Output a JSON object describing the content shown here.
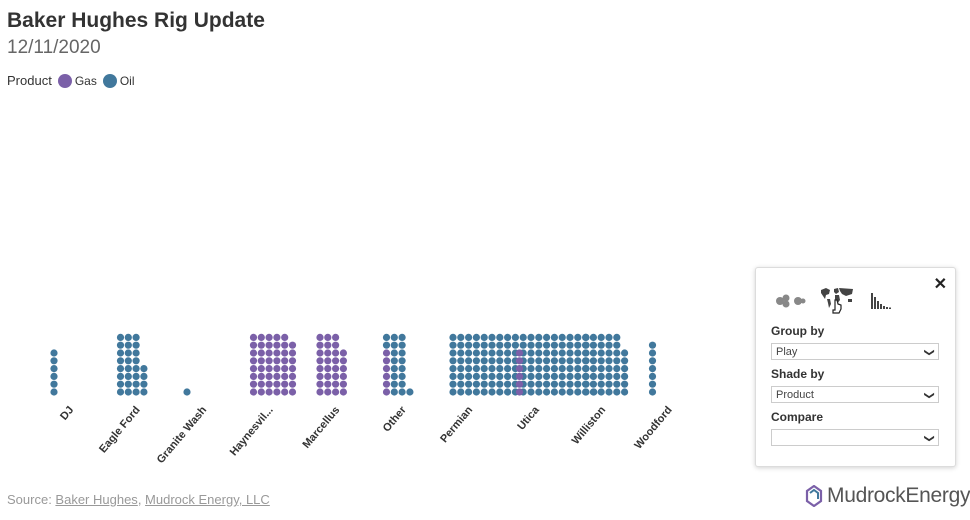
{
  "header": {
    "title": "Baker Hughes Rig Update",
    "date": "12/11/2020"
  },
  "legend": {
    "title": "Product",
    "items": [
      {
        "label": "Gas",
        "color": "#7b60a8"
      },
      {
        "label": "Oil",
        "color": "#41789c"
      }
    ]
  },
  "chart_data": {
    "type": "dot",
    "unit": "rigs (one dot per rig)",
    "categories": [
      "DJ",
      "Eagle Ford",
      "Granite Wash",
      "Haynesvil...",
      "Marcellus",
      "Other",
      "Permian",
      "Utica",
      "Williston",
      "Woodford"
    ],
    "series": [
      {
        "name": "Gas",
        "color": "#7b60a8",
        "values": [
          0,
          0,
          0,
          47,
          30,
          6,
          0,
          6,
          0,
          0
        ]
      },
      {
        "name": "Oil",
        "color": "#41789c",
        "values": [
          6,
          28,
          1,
          0,
          0,
          19,
          182,
          0,
          9,
          7
        ]
      }
    ]
  },
  "source": {
    "prefix": "Source: ",
    "link1": "Baker Hughes",
    "separator": ", ",
    "link2": "Mudrock Energy, LLC"
  },
  "brand": {
    "name": "MudrockEnergy"
  },
  "panel": {
    "close": "✕",
    "group_by": {
      "label": "Group by",
      "value": "Play"
    },
    "shade_by": {
      "label": "Shade by",
      "value": "Product"
    },
    "compare": {
      "label": "Compare",
      "value": ""
    }
  }
}
